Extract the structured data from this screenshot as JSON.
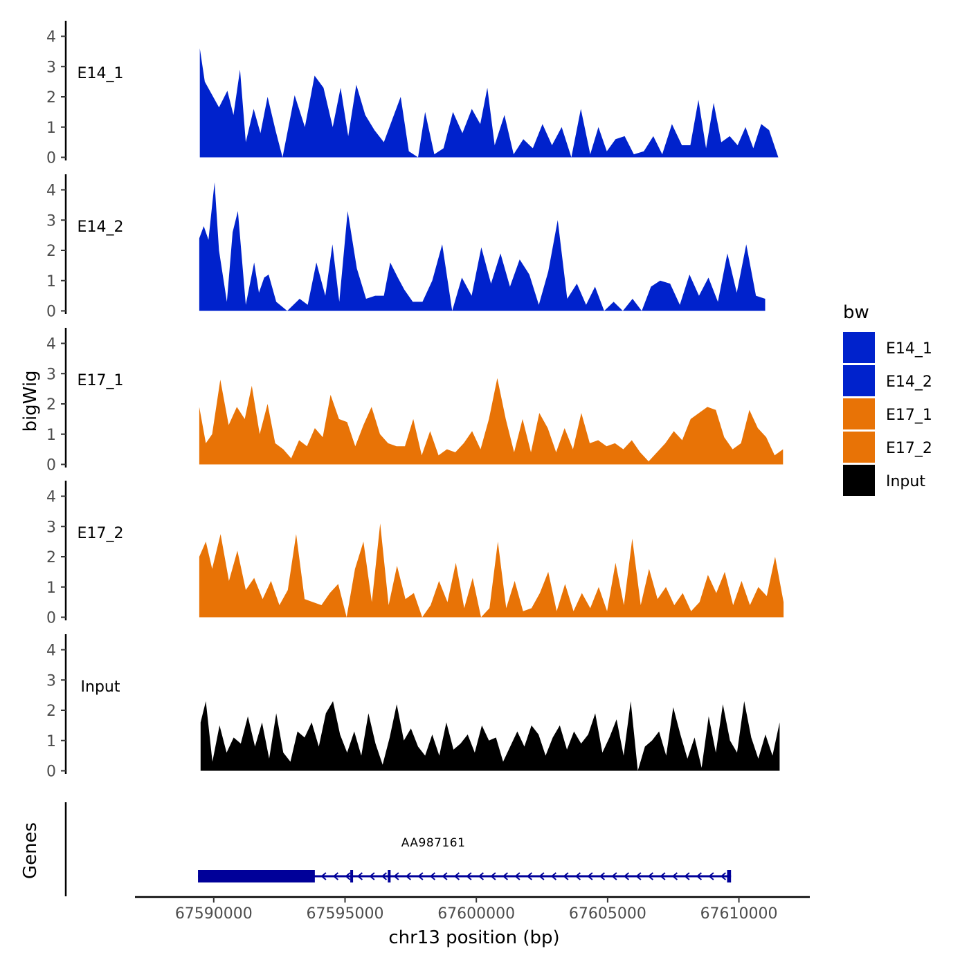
{
  "chart_data": {
    "type": "area",
    "title": "",
    "ylabel": "bigWig",
    "genes_label": "Genes",
    "xlabel": "chr13 position (bp)",
    "xlim": [
      67587000,
      67612700
    ],
    "ylim": [
      0,
      4.4
    ],
    "yticks": [
      "0",
      "1",
      "2",
      "3",
      "4"
    ],
    "xticks": [
      {
        "value": 67590000,
        "label": "67590000"
      },
      {
        "value": 67595000,
        "label": "67595000"
      },
      {
        "value": 67600000,
        "label": "67600000"
      },
      {
        "value": 67605000,
        "label": "67605000"
      },
      {
        "value": 67610000,
        "label": "67610000"
      }
    ],
    "legend": {
      "title": "bw",
      "position": "right",
      "items": [
        {
          "label": "E14_1",
          "color": "#0022CC"
        },
        {
          "label": "E14_2",
          "color": "#0022CC"
        },
        {
          "label": "E17_1",
          "color": "#E87306"
        },
        {
          "label": "E17_2",
          "color": "#E87306"
        },
        {
          "label": "Input",
          "color": "#000000"
        }
      ]
    },
    "series": [
      {
        "name": "E14_1",
        "color": "#0022CC",
        "x": [
          67589470,
          67589660,
          67590200,
          67590520,
          67590750,
          67591000,
          67591220,
          67591520,
          67591780,
          67592050,
          67592350,
          67592620,
          67593080,
          67593470,
          67593840,
          67594180,
          67594530,
          67594830,
          67595120,
          67595430,
          67595770,
          67596120,
          67596480,
          67596820,
          67597120,
          67597430,
          67597780,
          67598050,
          67598400,
          67598750,
          67599110,
          67599470,
          67599830,
          67600150,
          67600420,
          67600700,
          67601070,
          67601420,
          67601790,
          67602150,
          67602520,
          67602880,
          67603250,
          67603620,
          67603980,
          67604340,
          67604650,
          67604970,
          67605300,
          67605650,
          67606000,
          67606380,
          67606740,
          67607080,
          67607450,
          67607830,
          67608150,
          67608460,
          67608750,
          67609040,
          67609330,
          67609650,
          67609950,
          67610250,
          67610550,
          67610850,
          67611150,
          67611500
        ],
        "y": [
          3.6,
          2.5,
          1.65,
          2.2,
          1.4,
          2.9,
          0.5,
          1.6,
          0.8,
          2.0,
          0.9,
          0.0,
          2.05,
          1.0,
          2.7,
          2.3,
          1.0,
          2.3,
          0.7,
          2.4,
          1.4,
          0.9,
          0.5,
          1.3,
          2.0,
          0.2,
          0.0,
          1.5,
          0.1,
          0.3,
          1.5,
          0.8,
          1.6,
          1.1,
          2.3,
          0.4,
          1.4,
          0.1,
          0.6,
          0.3,
          1.1,
          0.4,
          1.0,
          0.0,
          1.6,
          0.1,
          1.0,
          0.2,
          0.6,
          0.7,
          0.1,
          0.2,
          0.7,
          0.1,
          1.1,
          0.4,
          0.4,
          1.9,
          0.3,
          1.8,
          0.5,
          0.7,
          0.4,
          1.0,
          0.3,
          1.1,
          0.9,
          0.0
        ]
      },
      {
        "name": "E14_2",
        "color": "#0022CC",
        "x": [
          67589450,
          67589620,
          67589800,
          67590030,
          67590200,
          67590500,
          67590720,
          67590920,
          67591220,
          67591540,
          67591720,
          67591920,
          67592090,
          67592380,
          67592800,
          67593270,
          67593580,
          67593910,
          67594250,
          67594520,
          67594780,
          67595100,
          67595450,
          67595800,
          67596150,
          67596480,
          67596720,
          67597010,
          67597260,
          67597580,
          67597950,
          67598320,
          67598700,
          67599080,
          67599450,
          67599820,
          67600190,
          67600560,
          67600920,
          67601280,
          67601650,
          67602020,
          67602380,
          67602740,
          67603100,
          67603460,
          67603830,
          67604180,
          67604520,
          67604870,
          67605230,
          67605580,
          67605950,
          67606300,
          67606650,
          67607000,
          67607380,
          67607750,
          67608120,
          67608480,
          67608840,
          67609200,
          67609560,
          67609920,
          67610280,
          67610650,
          67611000
        ],
        "y": [
          2.4,
          2.8,
          2.35,
          4.25,
          2.0,
          0.3,
          2.6,
          3.3,
          0.2,
          1.6,
          0.6,
          1.1,
          1.2,
          0.3,
          0.0,
          0.4,
          0.2,
          1.6,
          0.5,
          2.2,
          0.3,
          3.3,
          1.4,
          0.4,
          0.5,
          0.5,
          1.6,
          1.1,
          0.7,
          0.3,
          0.3,
          1.0,
          2.2,
          0.0,
          1.1,
          0.5,
          2.1,
          0.9,
          1.9,
          0.8,
          1.7,
          1.2,
          0.2,
          1.3,
          3.0,
          0.4,
          0.9,
          0.2,
          0.8,
          0.0,
          0.3,
          0.0,
          0.4,
          0.0,
          0.8,
          1.0,
          0.9,
          0.2,
          1.2,
          0.5,
          1.1,
          0.3,
          1.9,
          0.6,
          2.2,
          0.5,
          0.4
        ]
      },
      {
        "name": "E17_1",
        "color": "#E87306",
        "x": [
          67589450,
          67589700,
          67589940,
          67590250,
          67590570,
          67590880,
          67591180,
          67591450,
          67591750,
          67592050,
          67592340,
          67592650,
          67592950,
          67593250,
          67593550,
          67593850,
          67594150,
          67594450,
          67594770,
          67595080,
          67595390,
          67595700,
          67596010,
          67596330,
          67596640,
          67596960,
          67597280,
          67597600,
          67597920,
          67598240,
          67598560,
          67598880,
          67599200,
          67599520,
          67599840,
          67600160,
          67600480,
          67600800,
          67601120,
          67601440,
          67601760,
          67602080,
          67602400,
          67602720,
          67603040,
          67603360,
          67603680,
          67604000,
          67604320,
          67604640,
          67604960,
          67605280,
          67605600,
          67605920,
          67606240,
          67606560,
          67606880,
          67607200,
          67607520,
          67607840,
          67608160,
          67608480,
          67608800,
          67609120,
          67609440,
          67609760,
          67610080,
          67610400,
          67610720,
          67611040,
          67611360,
          67611680
        ],
        "y": [
          1.9,
          0.7,
          1.0,
          2.8,
          1.3,
          1.9,
          1.5,
          2.6,
          1.0,
          2.0,
          0.7,
          0.5,
          0.2,
          0.8,
          0.6,
          1.2,
          0.9,
          2.3,
          1.5,
          1.4,
          0.6,
          1.3,
          1.9,
          1.0,
          0.7,
          0.6,
          0.6,
          1.5,
          0.3,
          1.1,
          0.3,
          0.5,
          0.4,
          0.7,
          1.1,
          0.5,
          1.5,
          2.85,
          1.5,
          0.4,
          1.5,
          0.4,
          1.7,
          1.2,
          0.4,
          1.2,
          0.5,
          1.7,
          0.7,
          0.8,
          0.6,
          0.7,
          0.5,
          0.8,
          0.4,
          0.1,
          0.4,
          0.7,
          1.1,
          0.8,
          1.5,
          1.7,
          1.9,
          1.8,
          0.9,
          0.5,
          0.7,
          1.8,
          1.2,
          0.9,
          0.3,
          0.5
        ]
      },
      {
        "name": "E17_2",
        "color": "#E87306",
        "x": [
          67589450,
          67589700,
          67589940,
          67590260,
          67590580,
          67590900,
          67591220,
          67591540,
          67591860,
          67592180,
          67592500,
          67592820,
          67593140,
          67593460,
          67593780,
          67594100,
          67594420,
          67594740,
          67595060,
          67595380,
          67595700,
          67596020,
          67596340,
          67596660,
          67596980,
          67597300,
          67597620,
          67597940,
          67598260,
          67598580,
          67598900,
          67599220,
          67599540,
          67599860,
          67600180,
          67600500,
          67600820,
          67601140,
          67601460,
          67601780,
          67602100,
          67602420,
          67602740,
          67603060,
          67603380,
          67603700,
          67604020,
          67604340,
          67604660,
          67604980,
          67605300,
          67605620,
          67605940,
          67606260,
          67606580,
          67606900,
          67607220,
          67607540,
          67607860,
          67608180,
          67608500,
          67608820,
          67609140,
          67609460,
          67609780,
          67610100,
          67610420,
          67610740,
          67611060,
          67611380,
          67611700
        ],
        "y": [
          2.0,
          2.5,
          1.6,
          2.75,
          1.2,
          2.2,
          0.9,
          1.3,
          0.6,
          1.2,
          0.4,
          0.9,
          2.75,
          0.6,
          0.5,
          0.4,
          0.8,
          1.1,
          0.0,
          1.6,
          2.5,
          0.5,
          3.1,
          0.4,
          1.7,
          0.6,
          0.8,
          0.0,
          0.4,
          1.2,
          0.5,
          1.8,
          0.3,
          1.3,
          0.0,
          0.3,
          2.5,
          0.3,
          1.2,
          0.2,
          0.3,
          0.8,
          1.5,
          0.2,
          1.1,
          0.2,
          0.8,
          0.3,
          1.0,
          0.2,
          1.8,
          0.4,
          2.6,
          0.4,
          1.6,
          0.6,
          1.0,
          0.4,
          0.8,
          0.2,
          0.5,
          1.4,
          0.8,
          1.5,
          0.4,
          1.2,
          0.4,
          1.0,
          0.7,
          2.0,
          0.5
        ]
      },
      {
        "name": "Input",
        "color": "#000000",
        "x": [
          67589500,
          67589700,
          67589950,
          67590220,
          67590490,
          67590760,
          67591030,
          67591300,
          67591570,
          67591840,
          67592110,
          67592380,
          67592650,
          67592920,
          67593190,
          67593460,
          67593730,
          67594000,
          67594270,
          67594540,
          67594810,
          67595080,
          67595350,
          67595620,
          67595890,
          67596160,
          67596430,
          67596700,
          67596970,
          67597240,
          67597510,
          67597780,
          67598050,
          67598320,
          67598590,
          67598860,
          67599130,
          67599400,
          67599670,
          67599940,
          67600210,
          67600480,
          67600750,
          67601020,
          67601290,
          67601560,
          67601830,
          67602100,
          67602370,
          67602640,
          67602910,
          67603180,
          67603450,
          67603720,
          67603990,
          67604260,
          67604530,
          67604800,
          67605070,
          67605340,
          67605610,
          67605880,
          67606150,
          67606420,
          67606690,
          67606960,
          67607230,
          67607500,
          67607770,
          67608040,
          67608310,
          67608580,
          67608850,
          67609120,
          67609390,
          67609660,
          67609930,
          67610200,
          67610470,
          67610740,
          67611010,
          67611280,
          67611550
        ],
        "y": [
          1.6,
          2.3,
          0.3,
          1.5,
          0.6,
          1.1,
          0.9,
          1.8,
          0.8,
          1.6,
          0.4,
          1.9,
          0.6,
          0.3,
          1.3,
          1.1,
          1.6,
          0.8,
          1.9,
          2.3,
          1.2,
          0.6,
          1.3,
          0.5,
          1.9,
          0.9,
          0.2,
          1.1,
          2.2,
          1.0,
          1.4,
          0.8,
          0.5,
          1.2,
          0.5,
          1.6,
          0.7,
          0.9,
          1.2,
          0.6,
          1.5,
          1.0,
          1.1,
          0.3,
          0.8,
          1.3,
          0.8,
          1.5,
          1.2,
          0.5,
          1.1,
          1.5,
          0.7,
          1.3,
          0.9,
          1.2,
          1.9,
          0.6,
          1.1,
          1.7,
          0.5,
          2.3,
          0.0,
          0.8,
          1.0,
          1.3,
          0.5,
          2.1,
          1.2,
          0.4,
          1.1,
          0.1,
          1.8,
          0.6,
          2.2,
          1.0,
          0.6,
          2.3,
          1.1,
          0.4,
          1.2,
          0.5,
          1.6
        ]
      }
    ],
    "genes": [
      {
        "name": "AA987161",
        "strand": "-",
        "start": 67589400,
        "end": 67609700,
        "color": "#000099",
        "exons": [
          {
            "start": 67589400,
            "end": 67593850,
            "type": "thick"
          },
          {
            "start": 67595200,
            "end": 67595260,
            "type": "thin"
          },
          {
            "start": 67596630,
            "end": 67596690,
            "type": "thin"
          },
          {
            "start": 67609550,
            "end": 67609700,
            "type": "thin"
          }
        ]
      }
    ]
  }
}
